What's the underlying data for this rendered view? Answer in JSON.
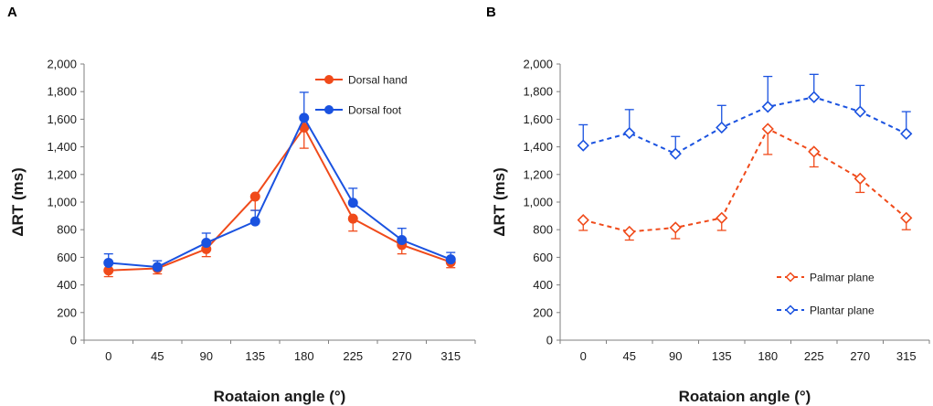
{
  "chart_data": [
    {
      "panel": "A",
      "type": "line",
      "title": "",
      "xlabel": "Roataion angle (°)",
      "ylabel": "ΔRT (ms)",
      "categories": [
        "0",
        "45",
        "90",
        "135",
        "180",
        "225",
        "270",
        "315"
      ],
      "ylim": [
        0,
        2000
      ],
      "yticks": [
        "0",
        "200",
        "400",
        "600",
        "800",
        "1,000",
        "1,200",
        "1,400",
        "1,600",
        "1,800",
        "2,000"
      ],
      "legend_position": "top-right",
      "series": [
        {
          "name": "Dorsal hand",
          "color": "#f04a1a",
          "marker": "circle",
          "dashed": false,
          "error_dir": "down",
          "values": [
            505,
            520,
            660,
            1040,
            1540,
            880,
            690,
            565
          ],
          "errors": [
            45,
            40,
            55,
            100,
            150,
            90,
            65,
            40
          ]
        },
        {
          "name": "Dorsal foot",
          "color": "#1a52e0",
          "marker": "circle",
          "dashed": false,
          "error_dir": "up",
          "values": [
            560,
            530,
            705,
            860,
            1610,
            995,
            725,
            585
          ],
          "errors": [
            65,
            45,
            70,
            80,
            185,
            105,
            85,
            50
          ]
        }
      ]
    },
    {
      "panel": "B",
      "type": "line",
      "title": "",
      "xlabel": "Roataion angle (°)",
      "ylabel": "ΔRT (ms)",
      "categories": [
        "0",
        "45",
        "90",
        "135",
        "180",
        "225",
        "270",
        "315"
      ],
      "ylim": [
        0,
        2000
      ],
      "yticks": [
        "0",
        "200",
        "400",
        "600",
        "800",
        "1,000",
        "1,200",
        "1,400",
        "1,600",
        "1,800",
        "2,000"
      ],
      "legend_position": "bottom-right",
      "series": [
        {
          "name": "Palmar plane",
          "color": "#f04a1a",
          "marker": "diamond",
          "dashed": true,
          "error_dir": "down",
          "values": [
            870,
            785,
            815,
            885,
            1530,
            1365,
            1170,
            885
          ],
          "errors": [
            75,
            60,
            80,
            90,
            185,
            110,
            100,
            85
          ]
        },
        {
          "name": "Plantar plane",
          "color": "#1a52e0",
          "marker": "diamond",
          "dashed": true,
          "error_dir": "up",
          "values": [
            1410,
            1500,
            1350,
            1540,
            1690,
            1760,
            1655,
            1495
          ],
          "errors": [
            150,
            170,
            125,
            160,
            220,
            165,
            190,
            160
          ]
        }
      ]
    }
  ]
}
